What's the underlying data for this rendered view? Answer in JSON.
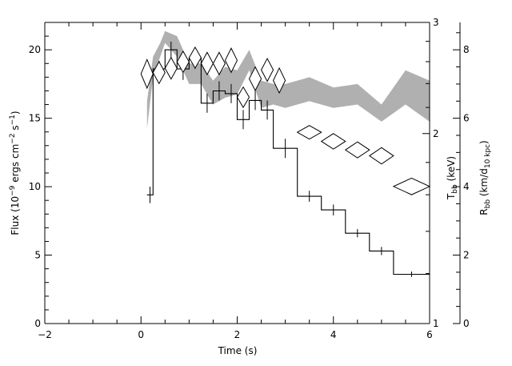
{
  "chart_data": {
    "type": "line",
    "x_axis": {
      "label": "Time (s)",
      "range": [
        -2,
        6
      ],
      "major_ticks": [
        -2,
        0,
        2,
        4,
        6
      ],
      "minor_step": 0.5
    },
    "y_left": {
      "label": "Flux (10⁻⁹ ergs cm⁻² s⁻¹)",
      "range": [
        0,
        22
      ],
      "major_ticks": [
        0,
        5,
        10,
        15,
        20
      ],
      "minor_step": 1
    },
    "y_right_T": {
      "label": "T_bb (keV)",
      "scale": "log",
      "range": [
        1,
        3
      ],
      "major_ticks": [
        1,
        2,
        3
      ],
      "minor_ticks": [
        1.2,
        1.4,
        1.6,
        1.8,
        2.2,
        2.4,
        2.6,
        2.8
      ]
    },
    "y_right_R": {
      "label": "R_bb (km/d_10 kpc)",
      "range": [
        0,
        8.8
      ],
      "major_ticks": [
        0,
        2,
        4,
        6,
        8
      ],
      "minor_step": 0.5
    },
    "grid": false,
    "series": [
      {
        "kind": "flux_histogram",
        "axis": "left",
        "bins": [
          {
            "x0": 0.125,
            "x1": 0.25,
            "y": 9.4,
            "err": 0.6
          },
          {
            "x0": 0.25,
            "x1": 0.5,
            "y": 18.6,
            "err": 0.6
          },
          {
            "x0": 0.5,
            "x1": 0.75,
            "y": 20.0,
            "err": 0.6
          },
          {
            "x0": 0.75,
            "x1": 1.0,
            "y": 18.6,
            "err": 0.8
          },
          {
            "x0": 1.0,
            "x1": 1.25,
            "y": 19.4,
            "err": 0.8
          },
          {
            "x0": 1.25,
            "x1": 1.5,
            "y": 16.1,
            "err": 0.7
          },
          {
            "x0": 1.5,
            "x1": 1.75,
            "y": 17.0,
            "err": 0.7
          },
          {
            "x0": 1.75,
            "x1": 2.0,
            "y": 16.8,
            "err": 0.7
          },
          {
            "x0": 2.0,
            "x1": 2.25,
            "y": 14.9,
            "err": 0.7
          },
          {
            "x0": 2.25,
            "x1": 2.5,
            "y": 16.3,
            "err": 0.7
          },
          {
            "x0": 2.5,
            "x1": 2.75,
            "y": 15.6,
            "err": 0.7
          },
          {
            "x0": 2.75,
            "x1": 3.25,
            "y": 12.8,
            "err": 0.7
          },
          {
            "x0": 3.25,
            "x1": 3.75,
            "y": 9.3,
            "err": 0.4
          },
          {
            "x0": 3.75,
            "x1": 4.25,
            "y": 8.3,
            "err": 0.4
          },
          {
            "x0": 4.25,
            "x1": 4.75,
            "y": 6.6,
            "err": 0.3
          },
          {
            "x0": 4.75,
            "x1": 5.25,
            "y": 5.3,
            "err": 0.3
          },
          {
            "x0": 5.25,
            "x1": 6.0,
            "y": 3.6,
            "err": 0.2
          }
        ]
      },
      {
        "kind": "temperature_diamonds",
        "axis": "right_T",
        "points": [
          {
            "x0": 0.0,
            "x1": 0.25,
            "lo": 2.36,
            "hi": 2.62
          },
          {
            "x0": 0.25,
            "x1": 0.5,
            "lo": 2.4,
            "hi": 2.6
          },
          {
            "x0": 0.5,
            "x1": 0.75,
            "lo": 2.44,
            "hi": 2.64
          },
          {
            "x0": 0.75,
            "x1": 1.0,
            "lo": 2.5,
            "hi": 2.7
          },
          {
            "x0": 1.0,
            "x1": 1.25,
            "lo": 2.54,
            "hi": 2.74
          },
          {
            "x0": 1.25,
            "x1": 1.5,
            "lo": 2.48,
            "hi": 2.69
          },
          {
            "x0": 1.5,
            "x1": 1.75,
            "lo": 2.48,
            "hi": 2.69
          },
          {
            "x0": 1.75,
            "x1": 2.0,
            "lo": 2.5,
            "hi": 2.73
          },
          {
            "x0": 2.0,
            "x1": 2.25,
            "lo": 2.2,
            "hi": 2.37
          },
          {
            "x0": 2.25,
            "x1": 2.5,
            "lo": 2.34,
            "hi": 2.55
          },
          {
            "x0": 2.5,
            "x1": 2.75,
            "lo": 2.42,
            "hi": 2.63
          },
          {
            "x0": 2.75,
            "x1": 3.0,
            "lo": 2.32,
            "hi": 2.54
          },
          {
            "x0": 3.25,
            "x1": 3.75,
            "lo": 1.96,
            "hi": 2.06
          },
          {
            "x0": 3.75,
            "x1": 4.25,
            "lo": 1.89,
            "hi": 2.0
          },
          {
            "x0": 4.25,
            "x1": 4.75,
            "lo": 1.83,
            "hi": 1.94
          },
          {
            "x0": 4.75,
            "x1": 5.25,
            "lo": 1.79,
            "hi": 1.9
          },
          {
            "x0": 5.25,
            "x1": 6.0,
            "lo": 1.6,
            "hi": 1.7
          }
        ]
      },
      {
        "kind": "radius_band",
        "axis": "right_R",
        "color": "#b0b0b0",
        "points": [
          {
            "x": 0.125,
            "lo": 5.7,
            "hi": 6.5
          },
          {
            "x": 0.25,
            "lo": 7.2,
            "hi": 7.8
          },
          {
            "x": 0.4,
            "lo": 7.8,
            "hi": 8.2
          },
          {
            "x": 0.5,
            "lo": 8.2,
            "hi": 8.55
          },
          {
            "x": 0.75,
            "lo": 7.8,
            "hi": 8.4
          },
          {
            "x": 1.0,
            "lo": 7.0,
            "hi": 7.6
          },
          {
            "x": 1.25,
            "lo": 7.0,
            "hi": 7.6
          },
          {
            "x": 1.5,
            "lo": 6.4,
            "hi": 7.1
          },
          {
            "x": 1.75,
            "lo": 6.6,
            "hi": 7.5
          },
          {
            "x": 2.0,
            "lo": 6.7,
            "hi": 7.4
          },
          {
            "x": 2.25,
            "lo": 7.4,
            "hi": 8.0
          },
          {
            "x": 2.5,
            "lo": 6.3,
            "hi": 7.1
          },
          {
            "x": 2.75,
            "lo": 6.4,
            "hi": 7.0
          },
          {
            "x": 3.0,
            "lo": 6.3,
            "hi": 7.0
          },
          {
            "x": 3.5,
            "lo": 6.5,
            "hi": 7.2
          },
          {
            "x": 4.0,
            "lo": 6.3,
            "hi": 6.9
          },
          {
            "x": 4.5,
            "lo": 6.4,
            "hi": 7.0
          },
          {
            "x": 5.0,
            "lo": 5.9,
            "hi": 6.4
          },
          {
            "x": 5.5,
            "lo": 6.4,
            "hi": 7.4
          },
          {
            "x": 6.0,
            "lo": 5.9,
            "hi": 7.1
          }
        ]
      }
    ]
  }
}
